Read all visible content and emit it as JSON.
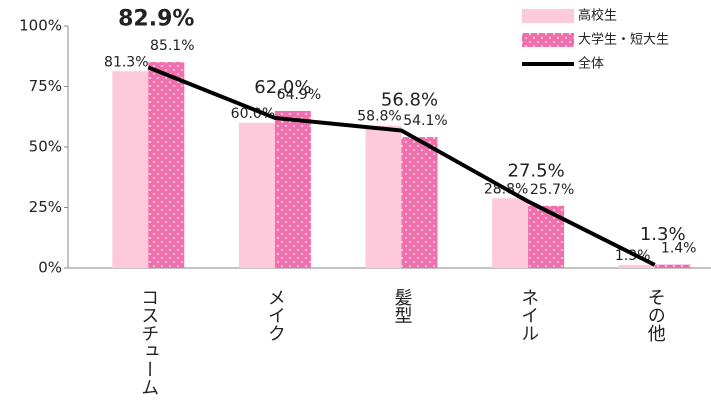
{
  "chart_data": {
    "type": "bar",
    "categories": [
      "コスチューム",
      "メイク",
      "髪型",
      "ネイル",
      "その他"
    ],
    "series": [
      {
        "name": "高校生",
        "color": "#ffc9dc",
        "values": [
          81.3,
          60.0,
          58.8,
          28.8,
          1.3
        ],
        "value_labels": [
          "81.3%",
          "60.0%",
          "58.8%",
          "28.8%",
          "1.3%"
        ]
      },
      {
        "name": "大学生・短大生",
        "color": "#f26fae",
        "values": [
          85.1,
          64.9,
          54.1,
          25.7,
          1.4
        ],
        "value_labels": [
          "85.1%",
          "64.9%",
          "54.1%",
          "25.7%",
          "1.4%"
        ]
      },
      {
        "name": "全体",
        "type": "line",
        "color": "#000000",
        "values": [
          82.9,
          62.0,
          56.8,
          27.5,
          1.3
        ],
        "value_labels": [
          "82.9%",
          "62.0%",
          "56.8%",
          "27.5%",
          "1.3%"
        ]
      }
    ],
    "ylim": [
      0,
      100
    ],
    "yticks": [
      {
        "value": 0,
        "label": "0%"
      },
      {
        "value": 25,
        "label": "25%"
      },
      {
        "value": 50,
        "label": "50%"
      },
      {
        "value": 75,
        "label": "75%"
      },
      {
        "value": 100,
        "label": "100%"
      }
    ],
    "legend": "top-right"
  }
}
